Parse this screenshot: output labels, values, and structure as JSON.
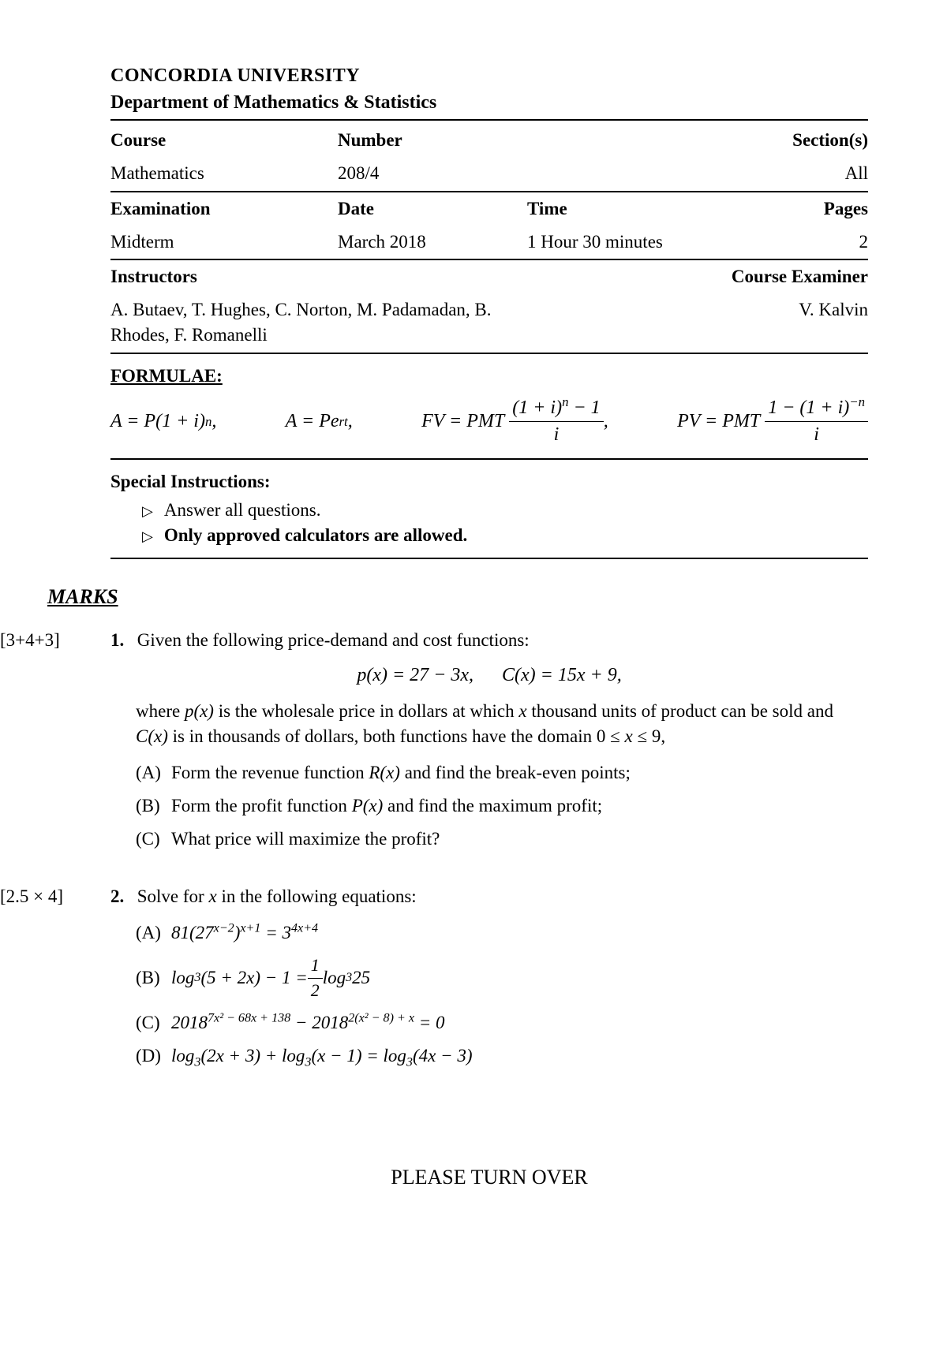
{
  "header": {
    "university": "CONCORDIA UNIVERSITY",
    "department": "Department of Mathematics & Statistics"
  },
  "info": {
    "course_label": "Course",
    "number_label": "Number",
    "section_label": "Section(s)",
    "course_value": "Mathematics",
    "number_value": "208/4",
    "section_value": "All",
    "exam_label": "Examination",
    "date_label": "Date",
    "time_label": "Time",
    "pages_label": "Pages",
    "exam_value": "Midterm",
    "date_value": "March 2018",
    "time_value": "1 Hour 30 minutes",
    "pages_value": "2",
    "instructors_label": "Instructors",
    "examiner_label": "Course Examiner",
    "instructors_value": "A. Butaev, T. Hughes, C. Norton, M. Padamadan, B. Rhodes, F. Romanelli",
    "examiner_value": "V. Kalvin"
  },
  "formulae": {
    "title": "FORMULAE:",
    "f1_left": "A = P(1 + i)",
    "f1_sup": "n",
    "f2_left": "A = Pe",
    "f2_sup": "rt",
    "f3_left": "FV = PMT",
    "f3_num_a": "(1 + i)",
    "f3_num_sup": "n",
    "f3_num_b": " − 1",
    "f3_den": "i",
    "f4_left": "PV = PMT",
    "f4_num_a": "1 − (1 + i)",
    "f4_num_sup": "−n",
    "f4_den": "i"
  },
  "special": {
    "title": "Special Instructions:",
    "item1": "Answer all questions.",
    "item2": "Only approved calculators are allowed."
  },
  "marks_header": "MARKS",
  "q1": {
    "marks": "[3+4+3]",
    "num": "1.",
    "intro": "Given the following price-demand and cost functions:",
    "eq_p": "p(x) = 27 − 3x,",
    "eq_c": "C(x) = 15x + 9,",
    "desc_a": "where ",
    "desc_px": "p(x)",
    "desc_b": " is the wholesale price in dollars at which ",
    "desc_x": "x",
    "desc_c": " thousand units of product can be sold and ",
    "desc_cx": "C(x)",
    "desc_d": " is in thousands of dollars, both functions have the domain 0 ≤ ",
    "desc_x2": "x",
    "desc_e": " ≤ 9,",
    "partA_label": "(A)",
    "partA_a": "Form the revenue function ",
    "partA_rx": "R(x)",
    "partA_b": " and find the break-even points;",
    "partB_label": "(B)",
    "partB_a": "Form the profit function ",
    "partB_px": "P(x)",
    "partB_b": " and find the maximum profit;",
    "partC_label": "(C)",
    "partC": "What price will maximize the profit?"
  },
  "q2": {
    "marks": "[2.5 × 4]",
    "num": "2.",
    "intro_a": "Solve for ",
    "intro_x": "x",
    "intro_b": " in the following equations:",
    "partA_label": "(A)",
    "partA_a": "81(27",
    "partA_sup1": "x−2",
    "partA_b": ")",
    "partA_sup2": "x+1",
    "partA_c": " = 3",
    "partA_sup3": "4x+4",
    "partB_label": "(B)",
    "partB_a": "log",
    "partB_sub1": "3",
    "partB_b": "(5 + 2x) − 1 = ",
    "partB_frac_num": "1",
    "partB_frac_den": "2",
    "partB_c": " log",
    "partB_sub2": "3",
    "partB_d": " 25",
    "partC_label": "(C)",
    "partC_a": "2018",
    "partC_sup1": "7x² − 68x + 138",
    "partC_b": " − 2018",
    "partC_sup2": "2(x² − 8) + x",
    "partC_c": " = 0",
    "partD_label": "(D)",
    "partD_a": "log",
    "partD_sub1": "3",
    "partD_b": "(2x + 3) + log",
    "partD_sub2": "3",
    "partD_c": "(x − 1) = log",
    "partD_sub3": "3",
    "partD_d": "(4x − 3)"
  },
  "footer": "PLEASE TURN OVER"
}
